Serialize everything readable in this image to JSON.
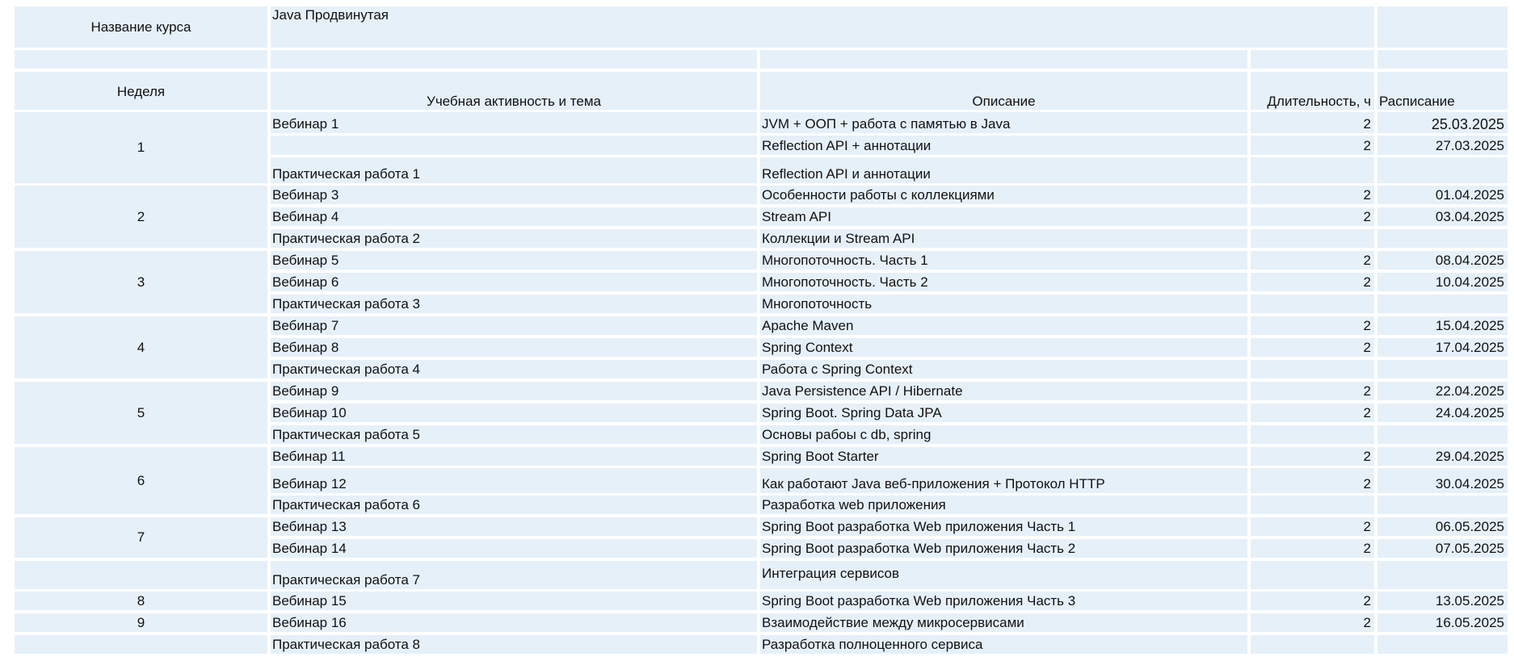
{
  "course": {
    "label": "Название курса",
    "name": "Java Продвинутая"
  },
  "headers": {
    "week": "Неделя",
    "activity": "Учебная активность и тема",
    "description": "Описание",
    "duration": "Длительность, ч",
    "schedule": "Расписание"
  },
  "weeks": [
    "1",
    "2",
    "3",
    "4",
    "5",
    "6",
    "7",
    "",
    "8",
    "9",
    ""
  ],
  "rows": [
    {
      "activity": "Вебинар 1",
      "description": "JVM + ООП + работа с памятью в Java",
      "duration": "2",
      "date": "25.03.2025"
    },
    {
      "activity": "",
      "description": "Reflection API + аннотации",
      "duration": "2",
      "date": "27.03.2025"
    },
    {
      "activity": "Практическая работа 1",
      "description": "Reflection API и аннотации",
      "duration": "",
      "date": ""
    },
    {
      "activity": "Вебинар 3",
      "description": "Особенности работы с коллекциями",
      "duration": "2",
      "date": "01.04.2025"
    },
    {
      "activity": "Вебинар 4",
      "description": "Stream API",
      "duration": "2",
      "date": "03.04.2025"
    },
    {
      "activity": "Практическая работа 2",
      "description": "Коллекции и Stream API",
      "duration": "",
      "date": ""
    },
    {
      "activity": "Вебинар 5",
      "description": "Многопоточность. Часть 1",
      "duration": "2",
      "date": "08.04.2025"
    },
    {
      "activity": "Вебинар 6",
      "description": "Многопоточность. Часть 2",
      "duration": "2",
      "date": "10.04.2025"
    },
    {
      "activity": "Практическая работа 3",
      "description": "Многопоточность",
      "duration": "",
      "date": ""
    },
    {
      "activity": "Вебинар 7",
      "description": "Apache Maven",
      "duration": "2",
      "date": "15.04.2025"
    },
    {
      "activity": "Вебинар 8",
      "description": "Spring Context",
      "duration": "2",
      "date": "17.04.2025"
    },
    {
      "activity": "Практическая работа 4",
      "description": "Работа с Spring Context",
      "duration": "",
      "date": ""
    },
    {
      "activity": "Вебинар 9",
      "description": "Java Persistence API / Hibernate",
      "duration": "2",
      "date": "22.04.2025"
    },
    {
      "activity": "Вебинар 10",
      "description": "Spring Boot. Spring Data JPA",
      "duration": "2",
      "date": "24.04.2025"
    },
    {
      "activity": "Практическая работа 5",
      "description": "Основы рабоы с db, spring",
      "duration": "",
      "date": ""
    },
    {
      "activity": "Вебинар 11",
      "description": "Spring Boot Starter",
      "duration": "2",
      "date": "29.04.2025"
    },
    {
      "activity": "Вебинар 12",
      "description": "Как работают Java веб-приложения + Протокол HTTP",
      "duration": "2",
      "date": "30.04.2025"
    },
    {
      "activity": "Практическая работа 6",
      "description": "Разработка web приложения",
      "duration": "",
      "date": ""
    },
    {
      "activity": "Вебинар 13",
      "description": "Spring Boot разработка Web приложения Часть 1",
      "duration": "2",
      "date": "06.05.2025"
    },
    {
      "activity": "Вебинар 14",
      "description": "Spring Boot разработка Web приложения Часть 2",
      "duration": "2",
      "date": "07.05.2025"
    },
    {
      "activity": "Практическая работа 7",
      "description": " Интеграция сервисов",
      "duration": "",
      "date": ""
    },
    {
      "activity": "Вебинар 15",
      "description": "Spring Boot разработка Web приложения Часть 3",
      "duration": "2",
      "date": "13.05.2025"
    },
    {
      "activity": "Вебинар 16",
      "description": "Взаимодействие между микросервисами",
      "duration": "2",
      "date": "16.05.2025"
    },
    {
      "activity": "Практическая работа 8",
      "description": "Разработка полноценного сервиса",
      "duration": "",
      "date": ""
    }
  ]
}
